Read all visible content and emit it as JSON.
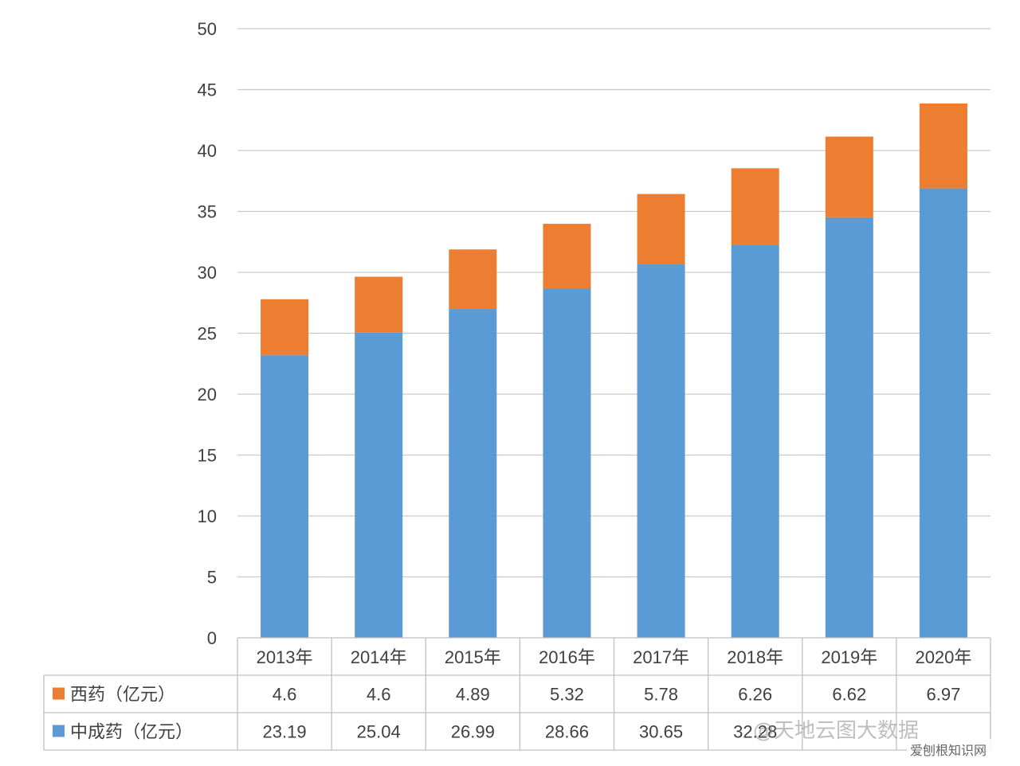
{
  "chart_data": {
    "type": "bar",
    "stacked": true,
    "categories": [
      "2013年",
      "2014年",
      "2015年",
      "2016年",
      "2017年",
      "2018年",
      "2019年",
      "2020年"
    ],
    "series": [
      {
        "name": "中成药（亿元）",
        "color": "#5b9bd5",
        "values": [
          23.19,
          25.04,
          26.99,
          28.66,
          30.65,
          32.28,
          34.52,
          36.89
        ]
      },
      {
        "name": "西药（亿元）",
        "color": "#ed7d31",
        "values": [
          4.6,
          4.6,
          4.89,
          5.32,
          5.78,
          6.26,
          6.62,
          6.97
        ]
      }
    ],
    "table_rows": [
      {
        "legend": "西药（亿元）",
        "color": "#ed7d31",
        "cells": [
          "4.6",
          "4.6",
          "4.89",
          "5.32",
          "5.78",
          "6.26",
          "6.62",
          "6.97"
        ]
      },
      {
        "legend": "中成药（亿元）",
        "color": "#5b9bd5",
        "cells": [
          "23.19",
          "25.04",
          "26.99",
          "28.66",
          "30.65",
          "32.28",
          "",
          ""
        ]
      }
    ],
    "ylim": [
      0,
      50
    ],
    "yticks": [
      0,
      5,
      10,
      15,
      20,
      25,
      30,
      35,
      40,
      45,
      50
    ],
    "grid": true,
    "legend": "data-table"
  },
  "watermark": {
    "text": "@天地云图大数据",
    "site": "爱刨根知识网"
  }
}
